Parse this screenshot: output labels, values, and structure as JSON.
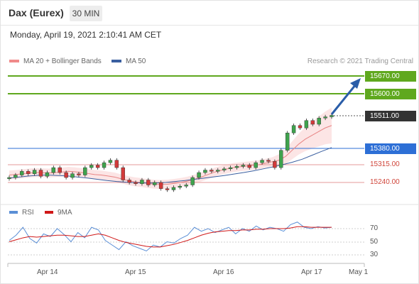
{
  "header": {
    "title": "Dax (Eurex)",
    "interval": "30 MIN"
  },
  "timestamp": "Monday, April 19, 2021 2:10:41 AM CET",
  "legend": {
    "ma20_label": "MA 20 + Bollinger Bands",
    "ma50_label": "MA 50",
    "ma20_color": "#f08a8a",
    "ma50_color": "#3a5fa0"
  },
  "credit": "Research © 2021 Trading Central",
  "levels": {
    "r2": "15670.00",
    "r1": "15600.00",
    "last": "15511.00",
    "s0": "15380.00",
    "s1": "15315.00",
    "s2": "15240.00",
    "resistance_color": "#5fa81e",
    "last_color": "#333333",
    "support_color": "#2d6fd6",
    "pivot_color": "#d0453a"
  },
  "rsi_panel": {
    "rsi_label": "RSI",
    "ma_label": "9MA",
    "rsi_color": "#5b8fd6",
    "ma_color": "#d01818",
    "levels": [
      "70",
      "50",
      "30"
    ]
  },
  "x_axis": {
    "labels": [
      "Apr 14",
      "Apr 15",
      "Apr 16",
      "Apr 17",
      "May 1"
    ]
  },
  "chart_data": {
    "type": "candlestick",
    "title": "",
    "xlabel": "",
    "ylabel": "",
    "ylim": [
      15140,
      15720
    ],
    "resistance": [
      15670,
      15600
    ],
    "last_price": 15511,
    "support": [
      15380
    ],
    "pivot_support": [
      15315,
      15240
    ],
    "close_series": [
      15260,
      15270,
      15285,
      15275,
      15290,
      15265,
      15280,
      15300,
      15280,
      15260,
      15275,
      15270,
      15300,
      15310,
      15300,
      15320,
      15330,
      15300,
      15250,
      15240,
      15235,
      15250,
      15230,
      15240,
      15215,
      15210,
      15220,
      15225,
      15230,
      15260,
      15280,
      15290,
      15285,
      15290,
      15295,
      15300,
      15305,
      15310,
      15300,
      15320,
      15330,
      15325,
      15300,
      15370,
      15440,
      15470,
      15460,
      15490,
      15475,
      15500,
      15505,
      15511
    ],
    "ma20": [
      15270,
      15272,
      15275,
      15278,
      15280,
      15279,
      15278,
      15280,
      15282,
      15285,
      15283,
      15280,
      15276,
      15272,
      15270,
      15266,
      15262,
      15255,
      15248,
      15243,
      15240,
      15236,
      15233,
      15232,
      15233,
      15236,
      15240,
      15245,
      15252,
      15260,
      15270,
      15280,
      15288,
      15294,
      15300,
      15303,
      15306,
      15309,
      15312,
      15318,
      15324,
      15330,
      15345,
      15370,
      15395,
      15415,
      15430,
      15445,
      15460,
      15470
    ],
    "ma50": [
      15258,
      15262,
      15266,
      15269,
      15270,
      15268,
      15266,
      15262,
      15258,
      15253,
      15248,
      15244,
      15241,
      15239,
      15238,
      15238,
      15240,
      15244,
      15248,
      15253,
      15258,
      15263,
      15268,
      15274,
      15280,
      15287,
      15295,
      15303,
      15312,
      15322,
      15334,
      15350,
      15366,
      15381
    ],
    "rsi": [
      52,
      60,
      72,
      55,
      48,
      62,
      58,
      70,
      61,
      50,
      64,
      56,
      72,
      68,
      52,
      45,
      38,
      50,
      44,
      40,
      36,
      45,
      42,
      50,
      48,
      55,
      60,
      72,
      66,
      70,
      64,
      68,
      72,
      62,
      70,
      66,
      74,
      68,
      72,
      70,
      66,
      76,
      80,
      72,
      70,
      73,
      71,
      72
    ],
    "rsi_ma": [
      50,
      53,
      56,
      58,
      57,
      58,
      59,
      60,
      60,
      59,
      58,
      58,
      60,
      62,
      60,
      56,
      52,
      49,
      47,
      45,
      43,
      42,
      42,
      44,
      46,
      49,
      52,
      56,
      60,
      63,
      65,
      66,
      67,
      67,
      68,
      68,
      69,
      69,
      70,
      70,
      70,
      71,
      73,
      73,
      72,
      72,
      72,
      72
    ]
  }
}
